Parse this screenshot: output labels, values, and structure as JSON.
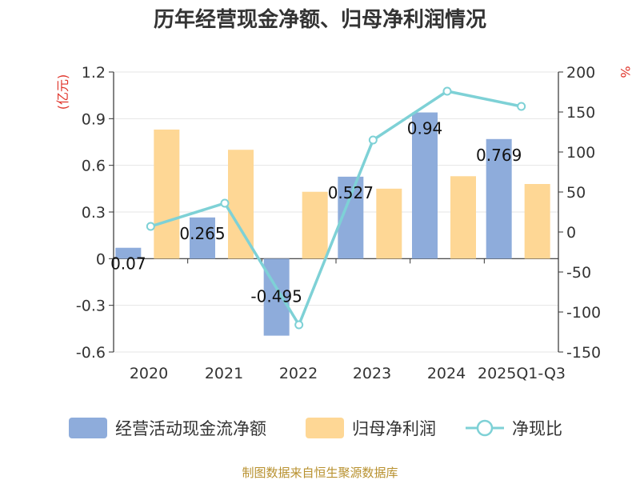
{
  "chart_data": {
    "type": "bar",
    "title": "历年经营现金净额、归母净利润情况",
    "categories": [
      "2020",
      "2021",
      "2022",
      "2023",
      "2024",
      "2025Q1-Q3"
    ],
    "series": [
      {
        "name": "经营活动现金流净额",
        "type": "bar",
        "axis": "left",
        "color": "#8eacdb",
        "values": [
          0.07,
          0.265,
          -0.495,
          0.527,
          0.94,
          0.769
        ],
        "labels": [
          "0.07",
          "0.265",
          "-0.495",
          "0.527",
          "0.94",
          "0.769"
        ]
      },
      {
        "name": "归母净利润",
        "type": "bar",
        "axis": "left",
        "color": "#fed795",
        "values": [
          0.83,
          0.7,
          0.43,
          0.45,
          0.53,
          0.48
        ]
      },
      {
        "name": "净现比",
        "type": "line",
        "axis": "right",
        "color": "#7ed1d6",
        "values": [
          7,
          36,
          -116,
          115,
          176,
          157
        ]
      }
    ],
    "y_left": {
      "unit": "(亿元)",
      "min": -0.6,
      "max": 1.2,
      "ticks": [
        -0.6,
        -0.3,
        0,
        0.3,
        0.6,
        0.9,
        1.2
      ],
      "tick_labels": [
        "-0.6",
        "-0.3",
        "0",
        "0.3",
        "0.6",
        "0.9",
        "1.2"
      ]
    },
    "y_right": {
      "unit": "%",
      "min": -150,
      "max": 200,
      "ticks": [
        -150,
        -100,
        -50,
        0,
        50,
        100,
        150,
        200
      ],
      "tick_labels": [
        "-150",
        "-100",
        "-50",
        "0",
        "50",
        "100",
        "150",
        "200"
      ]
    },
    "grid": "horizontal",
    "legend_position": "bottom"
  },
  "source": "制图数据来自恒生聚源数据库"
}
